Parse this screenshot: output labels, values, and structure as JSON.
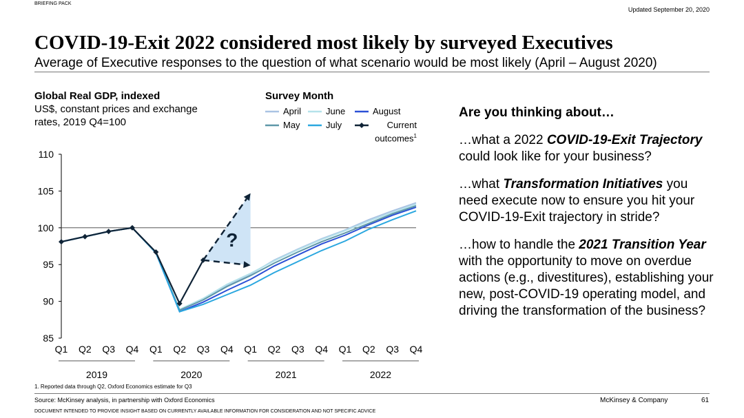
{
  "header": {
    "label": "BRIEFING PACK",
    "updated": "Updated September 20, 2020"
  },
  "title": "COVID-19-Exit 2022 considered most likely by surveyed Executives",
  "subtitle": "Average of Executive responses to the question of what scenario would be most likely (April – August 2020)",
  "chart_data": {
    "type": "line",
    "title": "Global Real GDP, indexed",
    "subtitle": "US$, constant prices and exchange rates, 2019 Q4=100",
    "legend_title": "Survey Month",
    "categories": [
      "Q1",
      "Q2",
      "Q3",
      "Q4",
      "Q1",
      "Q2",
      "Q3",
      "Q4",
      "Q1",
      "Q2",
      "Q3",
      "Q4",
      "Q1",
      "Q2",
      "Q3",
      "Q4"
    ],
    "groups": [
      "2019",
      "2020",
      "2021",
      "2022"
    ],
    "ylim": [
      85,
      110
    ],
    "yticks": [
      85,
      90,
      95,
      100,
      105,
      110
    ],
    "reference_line": 100,
    "series": [
      {
        "name": "April",
        "color": "#a9c3e3",
        "values": [
          98.1,
          98.8,
          99.5,
          100,
          96.6,
          88.8,
          90.3,
          92.2,
          93.7,
          95.6,
          97.1,
          98.5,
          99.7,
          101.1,
          102.3,
          103.4
        ]
      },
      {
        "name": "June",
        "color": "#b5e2ea",
        "values": [
          98.1,
          98.8,
          99.5,
          100,
          96.6,
          88.9,
          90.4,
          92.3,
          93.8,
          95.5,
          97.0,
          98.4,
          99.6,
          100.9,
          102.1,
          103.2
        ]
      },
      {
        "name": "August",
        "color": "#2b50d6",
        "values": [
          98.1,
          98.8,
          99.5,
          100,
          96.6,
          88.6,
          89.9,
          91.5,
          93.0,
          94.8,
          96.3,
          97.8,
          99.0,
          100.4,
          101.7,
          102.8
        ]
      },
      {
        "name": "May",
        "color": "#5e97a8",
        "values": [
          98.1,
          98.8,
          99.5,
          100,
          96.6,
          88.8,
          90.2,
          92.0,
          93.5,
          95.2,
          96.7,
          98.1,
          99.3,
          100.6,
          101.9,
          103.0
        ]
      },
      {
        "name": "July",
        "color": "#2aa7df",
        "values": [
          98.1,
          98.8,
          99.5,
          100,
          96.6,
          88.6,
          89.6,
          90.9,
          92.2,
          93.9,
          95.4,
          96.9,
          98.2,
          99.8,
          101.1,
          102.3
        ]
      },
      {
        "name": "Current outcomes",
        "color": "#0f2336",
        "markers": true,
        "values": [
          98.1,
          98.8,
          99.5,
          100,
          96.7,
          89.7,
          95.6,
          null,
          null,
          null,
          null,
          null,
          null,
          null,
          null,
          null
        ]
      }
    ],
    "footnote_marker": "1",
    "scenario_range": {
      "high": 104.7,
      "low": 94.9,
      "label": "?"
    }
  },
  "questions": {
    "heading": "Are you thinking about…",
    "items": [
      [
        {
          "text": "…what a 2022 ",
          "style": "normal"
        },
        {
          "text": "COVID-19-Exit Trajectory",
          "style": "bold-italic"
        },
        {
          "text": " could look like for your business?",
          "style": "normal"
        }
      ],
      [
        {
          "text": "…what ",
          "style": "normal"
        },
        {
          "text": "Transformation Initiatives",
          "style": "bold-italic"
        },
        {
          "text": " you need execute now to ensure you hit your COVID-19-Exit trajectory in stride?",
          "style": "normal"
        }
      ],
      [
        {
          "text": "…how to handle the ",
          "style": "normal"
        },
        {
          "text": "2021 Transition Year",
          "style": "bold-italic"
        },
        {
          "text": " with the opportunity to move on overdue actions (e.g., divestitures), establishing your new, post-COVID-19 operating model, and driving the transformation of the business?",
          "style": "normal"
        }
      ]
    ]
  },
  "footnote": "1.   Reported data through Q2, Oxford Economics estimate for Q3",
  "source": "Source: McKinsey analysis, in partnership with Oxford Economics",
  "company": "McKinsey & Company",
  "page_number": "61",
  "disclaimer": "DOCUMENT INTENDED TO PROVIDE INSIGHT BASED ON CURRENTLY AVAILABLE INFORMATION FOR CONSIDERATION AND NOT SPECIFIC ADVICE"
}
